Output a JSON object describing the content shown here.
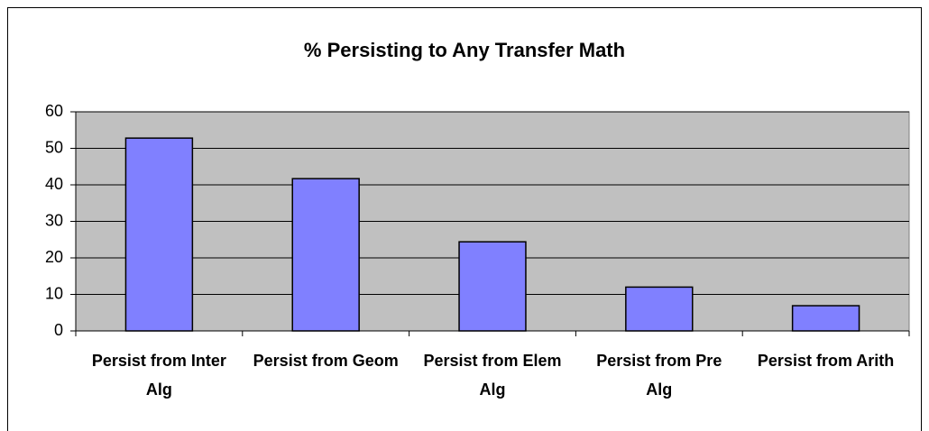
{
  "chart_data": {
    "type": "bar",
    "title": "% Persisting to Any Transfer Math",
    "categories": [
      "Persist from Inter Alg",
      "Persist from Geom",
      "Persist from Elem Alg",
      "Persist from Pre Alg",
      "Persist from Arith"
    ],
    "values": [
      52.8,
      41.7,
      24.4,
      12,
      6.9
    ],
    "color": "#8080ff",
    "ylim": [
      0,
      60
    ],
    "yticks": [
      0,
      10,
      20,
      30,
      40,
      50,
      60
    ],
    "grid": true
  }
}
